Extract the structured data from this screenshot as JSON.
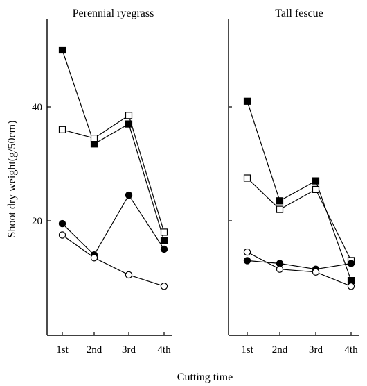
{
  "chart_data": [
    {
      "type": "line",
      "title": "Perennial ryegrass",
      "xlabel": "Cutting time",
      "ylabel": "Shoot dry weight(g/50cm)",
      "categories": [
        "1st",
        "2nd",
        "3rd",
        "4th"
      ],
      "ylim": [
        0,
        60
      ],
      "yticks": [
        20,
        40
      ],
      "grid": false,
      "legend": "none",
      "series": [
        {
          "marker": "filled-square",
          "values": [
            50,
            33.5,
            37,
            16.5
          ]
        },
        {
          "marker": "open-square",
          "values": [
            36,
            34.5,
            38.5,
            18
          ]
        },
        {
          "marker": "filled-circle",
          "values": [
            19.5,
            14,
            24.5,
            15
          ]
        },
        {
          "marker": "open-circle",
          "values": [
            17.5,
            13.5,
            10.5,
            8.5
          ]
        }
      ]
    },
    {
      "type": "line",
      "title": "Tall fescue",
      "xlabel": "Cutting time",
      "ylabel": "",
      "categories": [
        "1st",
        "2nd",
        "3rd",
        "4th"
      ],
      "ylim": [
        0,
        60
      ],
      "yticks": [
        20,
        40
      ],
      "grid": false,
      "legend": "none",
      "series": [
        {
          "marker": "filled-square",
          "values": [
            41,
            23.5,
            27,
            9.5
          ]
        },
        {
          "marker": "open-square",
          "values": [
            27.5,
            22,
            25.5,
            13
          ]
        },
        {
          "marker": "filled-circle",
          "values": [
            13,
            12.5,
            11.5,
            12.5
          ]
        },
        {
          "marker": "open-circle",
          "values": [
            14.5,
            11.5,
            11,
            8.5
          ]
        }
      ]
    }
  ],
  "shared_xlabel": "Cutting time",
  "shared_ylabel": "Shoot dry weight(g/50cm)"
}
